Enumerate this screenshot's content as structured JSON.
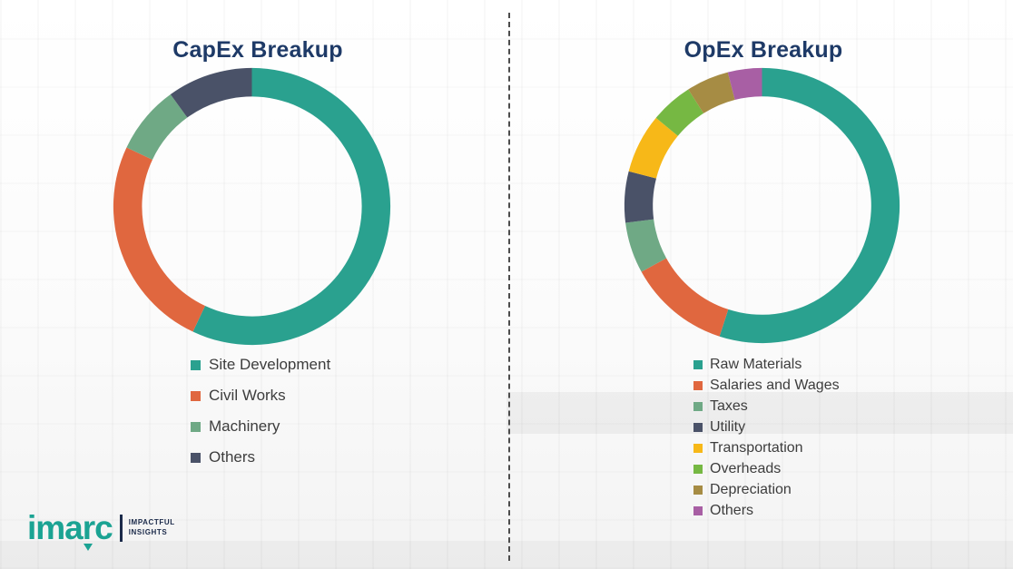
{
  "chart_data": [
    {
      "type": "pie",
      "donut": true,
      "title": "CapEx Breakup",
      "labels": [
        "Site Development",
        "Civil Works",
        "Machinery",
        "Others"
      ],
      "values": [
        57,
        25,
        8,
        10
      ],
      "colors": [
        "#2aa18f",
        "#e0673f",
        "#6fa985",
        "#4a5268"
      ],
      "legend_position": "bottom"
    },
    {
      "type": "pie",
      "donut": true,
      "title": "OpEx Breakup",
      "labels": [
        "Raw Materials",
        "Salaries and Wages",
        "Taxes",
        "Utility",
        "Transportation",
        "Overheads",
        "Depreciation",
        "Others"
      ],
      "values": [
        55,
        12,
        6,
        6,
        7,
        5,
        5,
        4
      ],
      "colors": [
        "#2aa18f",
        "#e0673f",
        "#6fa985",
        "#4a5268",
        "#f7b818",
        "#76b843",
        "#a68c44",
        "#a85fa4"
      ],
      "legend_position": "bottom"
    }
  ],
  "colors": {
    "title": "#1e3a67",
    "legend_text": "#3d3d3d",
    "divider": "#4c4c4c",
    "logo_teal": "#1ba393",
    "logo_navy": "#1b2a4a"
  },
  "logo": {
    "name": "imarc",
    "tagline_line1": "IMPACTFUL",
    "tagline_line2": "INSIGHTS"
  }
}
